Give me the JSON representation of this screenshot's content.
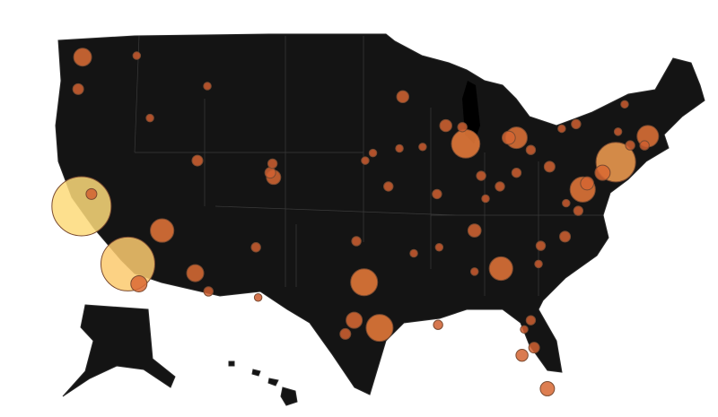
{
  "chart_data": {
    "type": "bubble_map",
    "lon": [
      -122.4,
      -118.2,
      -74.0,
      -87.6,
      -96.8,
      -95.4,
      -77.0,
      -84.4,
      -115.1,
      -112.1,
      -71.1,
      -83.0,
      -83.7,
      -122.3,
      -122.7,
      -117.2,
      -75.2,
      -80.2,
      -82.5,
      -81.4,
      -105.0,
      -111.9,
      -97.7,
      -98.5,
      -93.3,
      -90.2,
      -94.6,
      -86.8,
      -80.8,
      -78.6,
      -80.0,
      -83.0,
      -81.7,
      -89.4,
      -87.9,
      -86.2,
      -90.1,
      -76.6,
      -97.5,
      -106.6,
      -121.5,
      -116.2,
      -117.4,
      -110.9,
      -106.4,
      -86.8,
      -90.0,
      -85.8,
      -84.5,
      -78.9,
      -77.6,
      -72.7,
      -71.4,
      -73.8,
      -73.2,
      -81.7,
      -82.3,
      -96.0,
      -93.6,
      -91.5,
      -96.7,
      -92.3,
      -81.0,
      -77.4,
      -78.5,
      -105.1,
      -105.3,
      -111.0
    ],
    "lat": [
      37.8,
      34.0,
      40.7,
      41.9,
      32.8,
      29.8,
      38.9,
      33.7,
      36.2,
      33.4,
      42.4,
      42.3,
      42.3,
      47.6,
      45.5,
      32.7,
      40.0,
      25.8,
      28.0,
      28.5,
      39.7,
      40.8,
      30.3,
      29.4,
      45.0,
      38.6,
      39.1,
      36.2,
      35.2,
      35.8,
      40.4,
      40.0,
      41.5,
      43.1,
      43.0,
      39.8,
      30.0,
      39.3,
      35.5,
      35.1,
      38.6,
      43.6,
      47.7,
      32.2,
      31.8,
      33.5,
      35.1,
      38.3,
      39.1,
      42.9,
      43.2,
      41.8,
      41.8,
      42.7,
      44.5,
      30.3,
      29.7,
      41.3,
      41.6,
      41.7,
      40.8,
      34.7,
      34.0,
      37.5,
      38.0,
      40.6,
      40.0,
      45.7
    ],
    "values": [
      121,
      100,
      54,
      28,
      25,
      25,
      22,
      19,
      19,
      10,
      16,
      16,
      6,
      11,
      4,
      9,
      8,
      7,
      5,
      4,
      7,
      4,
      9,
      4,
      5,
      3,
      3,
      6,
      3,
      4,
      4,
      3,
      3,
      5,
      3,
      3,
      3,
      6,
      3,
      3,
      4,
      2,
      2,
      3,
      2,
      2,
      2,
      2,
      3,
      2,
      3,
      3,
      3,
      2,
      2,
      3,
      2,
      2,
      2,
      2,
      2,
      2,
      2,
      3,
      2,
      3,
      4,
      2
    ]
  }
}
